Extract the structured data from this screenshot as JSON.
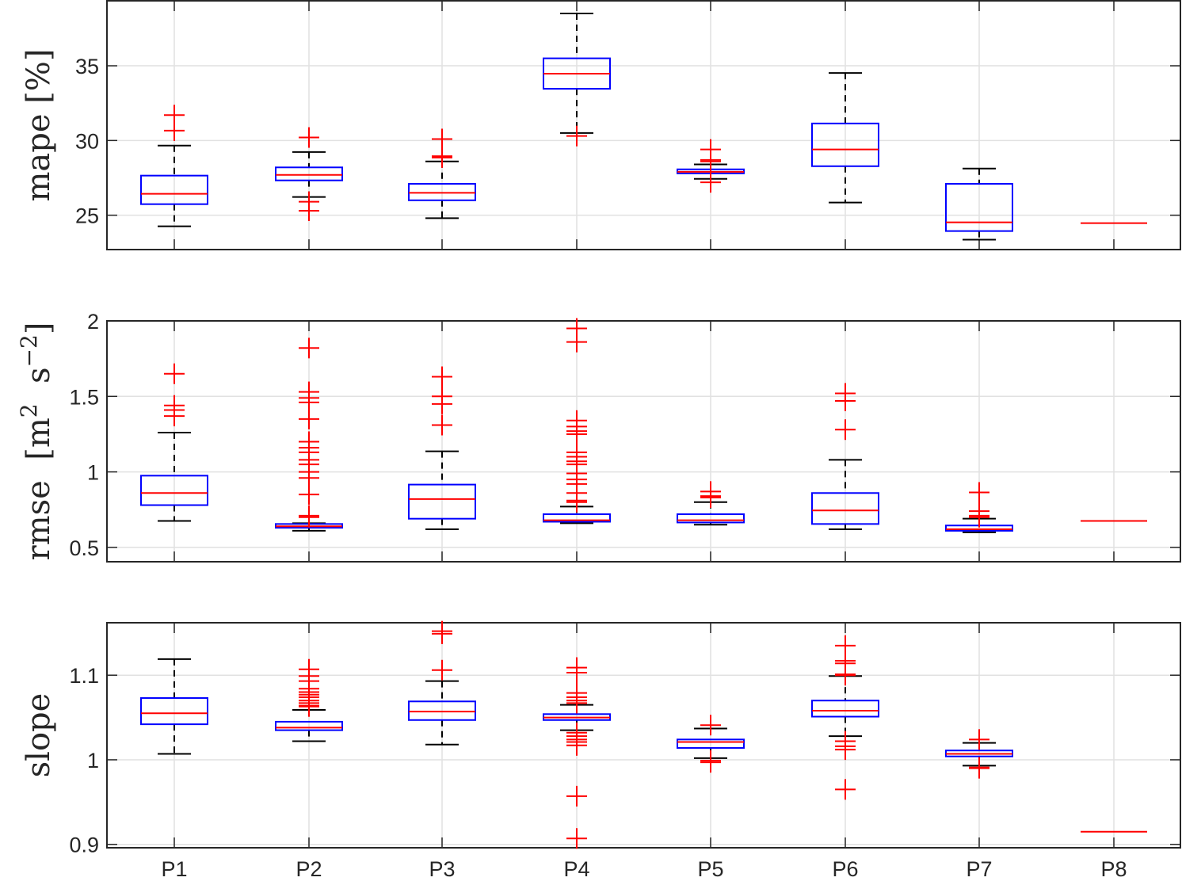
{
  "chart_data": [
    {
      "type": "box",
      "ylabel": "mape [%]",
      "ylim": [
        22.7,
        39.35
      ],
      "yticks": [
        25,
        30,
        35
      ],
      "ytick_labels": [
        "25",
        "30",
        "35"
      ],
      "categories": [
        "P1",
        "P2",
        "P3",
        "P4",
        "P5",
        "P6",
        "P7",
        "P8"
      ],
      "show_xtick_labels": false,
      "grid": true,
      "boxes": [
        {
          "name": "P1",
          "whisker_low": 24.26,
          "q1": 25.74,
          "median": 26.43,
          "q3": 27.65,
          "whisker_high": 29.66,
          "outliers": [
            30.66,
            31.7
          ]
        },
        {
          "name": "P2",
          "whisker_low": 26.22,
          "q1": 27.33,
          "median": 27.7,
          "q3": 28.2,
          "whisker_high": 29.23,
          "outliers": [
            30.2,
            25.9,
            25.3
          ]
        },
        {
          "name": "P3",
          "whisker_low": 24.8,
          "q1": 26.0,
          "median": 26.5,
          "q3": 27.1,
          "whisker_high": 28.6,
          "outliers": [
            30.1,
            28.86,
            28.9,
            28.95
          ]
        },
        {
          "name": "P4",
          "whisker_low": 30.5,
          "q1": 33.46,
          "median": 34.47,
          "q3": 35.5,
          "whisker_high": 38.5,
          "outliers": [
            30.3
          ]
        },
        {
          "name": "P5",
          "whisker_low": 27.43,
          "q1": 27.8,
          "median": 27.9,
          "q3": 28.07,
          "whisker_high": 28.4,
          "outliers": [
            29.4,
            28.6,
            28.7,
            27.2
          ]
        },
        {
          "name": "P6",
          "whisker_low": 25.85,
          "q1": 28.28,
          "median": 29.4,
          "q3": 31.14,
          "whisker_high": 34.52,
          "outliers": []
        },
        {
          "name": "P7",
          "whisker_low": 23.36,
          "q1": 23.94,
          "median": 24.52,
          "q3": 27.1,
          "whisker_high": 28.12,
          "outliers": []
        },
        {
          "name": "P8",
          "whisker_low": 24.47,
          "q1": 24.47,
          "median": 24.47,
          "q3": 24.47,
          "whisker_high": 24.47,
          "outliers": []
        }
      ]
    },
    {
      "type": "box",
      "ylabel": "rmse [m^2 s^-2]",
      "ylabel_parts": {
        "prefix": "rmse [m",
        "sup1": "2",
        "mid": " s",
        "sup2": "−2",
        "suffix": "]"
      },
      "ylim": [
        0.405,
        2.0
      ],
      "yticks": [
        0.5,
        1,
        1.5,
        2
      ],
      "ytick_labels": [
        "0.5",
        "1",
        "1.5",
        "2"
      ],
      "categories": [
        "P1",
        "P2",
        "P3",
        "P4",
        "P5",
        "P6",
        "P7",
        "P8"
      ],
      "show_xtick_labels": false,
      "grid": true,
      "boxes": [
        {
          "name": "P1",
          "whisker_low": 0.675,
          "q1": 0.78,
          "median": 0.86,
          "q3": 0.975,
          "whisker_high": 1.26,
          "outliers": [
            1.65,
            1.44,
            1.41,
            1.37
          ]
        },
        {
          "name": "P2",
          "whisker_low": 0.61,
          "q1": 0.63,
          "median": 0.64,
          "q3": 0.655,
          "whisker_high": 0.66,
          "outliers": [
            1.82,
            1.53,
            1.49,
            1.46,
            1.35,
            1.2,
            1.16,
            1.13,
            1.08,
            1.05,
            1.0,
            0.96,
            0.85,
            0.71,
            0.7
          ]
        },
        {
          "name": "P3",
          "whisker_low": 0.62,
          "q1": 0.69,
          "median": 0.82,
          "q3": 0.916,
          "whisker_high": 1.136,
          "outliers": [
            1.63,
            1.5,
            1.45,
            1.31
          ]
        },
        {
          "name": "P4",
          "whisker_low": 0.66,
          "q1": 0.67,
          "median": 0.68,
          "q3": 0.72,
          "whisker_high": 0.77,
          "outliers": [
            1.95,
            1.86,
            1.34,
            1.3,
            1.27,
            1.25,
            1.13,
            1.1,
            1.07,
            1.05,
            0.99,
            0.95,
            0.92,
            0.86,
            0.81,
            0.8
          ]
        },
        {
          "name": "P5",
          "whisker_low": 0.65,
          "q1": 0.665,
          "median": 0.68,
          "q3": 0.72,
          "whisker_high": 0.8,
          "outliers": [
            0.87,
            0.84,
            0.83
          ]
        },
        {
          "name": "P6",
          "whisker_low": 0.62,
          "q1": 0.655,
          "median": 0.745,
          "q3": 0.86,
          "whisker_high": 1.08,
          "outliers": [
            1.52,
            1.47,
            1.28
          ]
        },
        {
          "name": "P7",
          "whisker_low": 0.6,
          "q1": 0.61,
          "median": 0.62,
          "q3": 0.645,
          "whisker_high": 0.69,
          "outliers": [
            0.864,
            0.74,
            0.71,
            0.7
          ]
        },
        {
          "name": "P8",
          "whisker_low": 0.675,
          "q1": 0.675,
          "median": 0.675,
          "q3": 0.675,
          "whisker_high": 0.675,
          "outliers": []
        }
      ]
    },
    {
      "type": "box",
      "ylabel": "slope",
      "ylim": [
        0.896,
        1.162
      ],
      "yticks": [
        0.9,
        1,
        1.1
      ],
      "ytick_labels": [
        "0.9",
        "1",
        "1.1"
      ],
      "categories": [
        "P1",
        "P2",
        "P3",
        "P4",
        "P5",
        "P6",
        "P7",
        "P8"
      ],
      "show_xtick_labels": true,
      "grid": true,
      "boxes": [
        {
          "name": "P1",
          "whisker_low": 1.007,
          "q1": 1.042,
          "median": 1.055,
          "q3": 1.073,
          "whisker_high": 1.119,
          "outliers": []
        },
        {
          "name": "P2",
          "whisker_low": 1.022,
          "q1": 1.035,
          "median": 1.038,
          "q3": 1.045,
          "whisker_high": 1.059,
          "outliers": [
            1.107,
            1.099,
            1.093,
            1.084,
            1.08,
            1.077,
            1.074,
            1.07,
            1.067,
            1.064,
            1.063
          ]
        },
        {
          "name": "P3",
          "whisker_low": 1.018,
          "q1": 1.047,
          "median": 1.057,
          "q3": 1.069,
          "whisker_high": 1.093,
          "outliers": [
            1.152,
            1.149,
            1.106
          ]
        },
        {
          "name": "P4",
          "whisker_low": 1.035,
          "q1": 1.047,
          "median": 1.05,
          "q3": 1.054,
          "whisker_high": 1.065,
          "outliers": [
            1.109,
            1.103,
            1.079,
            1.074,
            1.07,
            1.067,
            1.032,
            1.028,
            1.024,
            1.021,
            1.017,
            0.957,
            0.907
          ]
        },
        {
          "name": "P5",
          "whisker_low": 1.002,
          "q1": 1.014,
          "median": 1.021,
          "q3": 1.024,
          "whisker_high": 1.037,
          "outliers": [
            1.041,
            0.999,
            0.997
          ]
        },
        {
          "name": "P6",
          "whisker_low": 1.028,
          "q1": 1.051,
          "median": 1.058,
          "q3": 1.07,
          "whisker_high": 1.099,
          "outliers": [
            1.135,
            1.117,
            1.114,
            1.101,
            1.1,
            1.022,
            1.016,
            1.012,
            0.965
          ]
        },
        {
          "name": "P7",
          "whisker_low": 0.993,
          "q1": 1.004,
          "median": 1.007,
          "q3": 1.011,
          "whisker_high": 1.02,
          "outliers": [
            1.024,
            0.991,
            0.99
          ]
        },
        {
          "name": "P8",
          "whisker_low": 0.915,
          "q1": 0.915,
          "median": 0.915,
          "q3": 0.915,
          "whisker_high": 0.915,
          "outliers": []
        }
      ]
    }
  ],
  "colors": {
    "box": "#0000ff",
    "median": "#ff0000",
    "outlier": "#ff0000",
    "whisker": "#000000",
    "axis": "#262626",
    "grid": "#e1e1e1"
  }
}
